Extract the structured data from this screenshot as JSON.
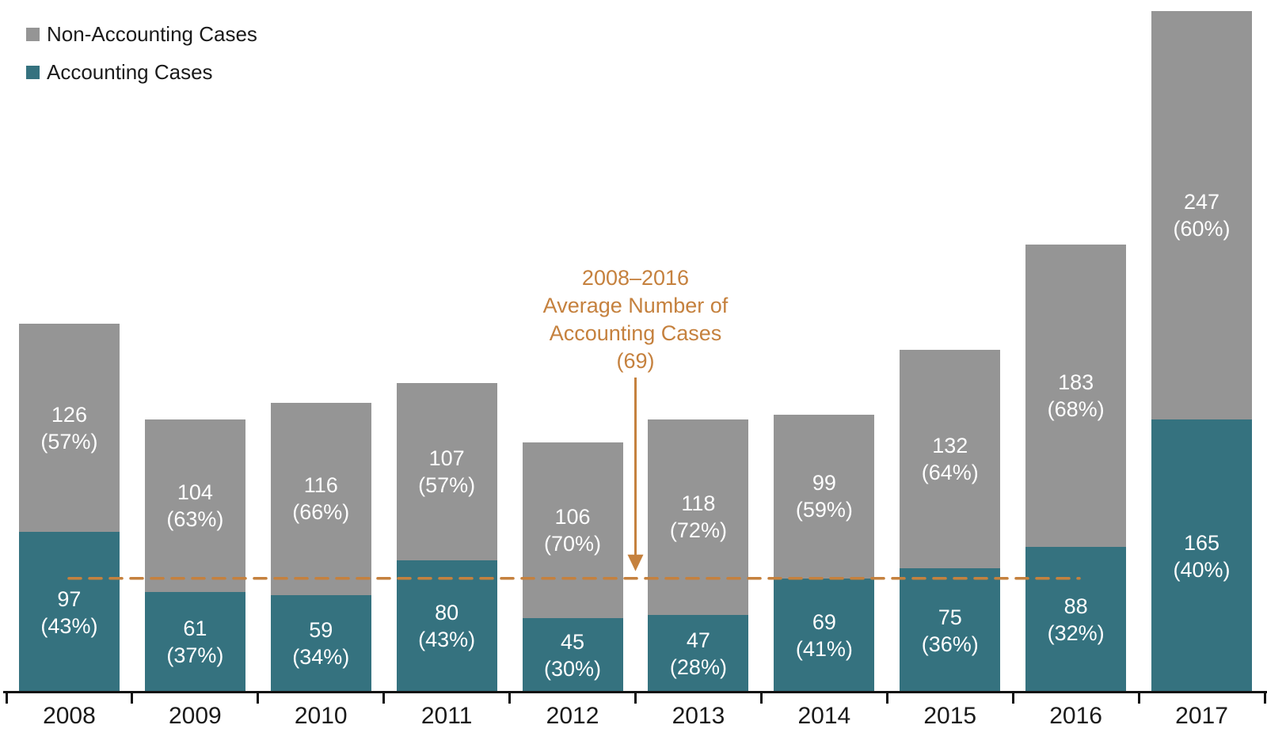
{
  "legend": {
    "items": [
      {
        "label": "Non-Accounting Cases",
        "color": "#959595"
      },
      {
        "label": "Accounting Cases",
        "color": "#35727F"
      }
    ]
  },
  "annotation": {
    "lines": [
      "2008–2016",
      "Average Number of",
      "Accounting Cases",
      "(69)"
    ],
    "color": "#C5813E"
  },
  "chart_data": {
    "type": "bar",
    "stacked": true,
    "grid": false,
    "legend_position": "top-left",
    "categories": [
      "2008",
      "2009",
      "2010",
      "2011",
      "2012",
      "2013",
      "2014",
      "2015",
      "2016",
      "2017"
    ],
    "series": [
      {
        "name": "Accounting Cases",
        "color": "#35727F",
        "values": [
          97,
          61,
          59,
          80,
          45,
          47,
          69,
          75,
          88,
          165
        ],
        "pct_labels": [
          "(43%)",
          "(37%)",
          "(34%)",
          "(43%)",
          "(30%)",
          "(28%)",
          "(41%)",
          "(36%)",
          "(32%)",
          "(40%)"
        ]
      },
      {
        "name": "Non-Accounting Cases",
        "color": "#959595",
        "values": [
          126,
          104,
          116,
          107,
          106,
          118,
          99,
          132,
          183,
          247
        ],
        "pct_labels": [
          "(57%)",
          "(63%)",
          "(66%)",
          "(57%)",
          "(70%)",
          "(72%)",
          "(59%)",
          "(64%)",
          "(68%)",
          "(60%)"
        ]
      }
    ],
    "totals": [
      223,
      165,
      175,
      187,
      151,
      165,
      168,
      207,
      271,
      412
    ],
    "average_line": {
      "value": 69,
      "label": "2008–2016 Average Number of Accounting Cases (69)",
      "color": "#C5813E",
      "style": "dashed"
    },
    "xlabel": "",
    "ylabel": "",
    "ylim": [
      0,
      418
    ]
  }
}
